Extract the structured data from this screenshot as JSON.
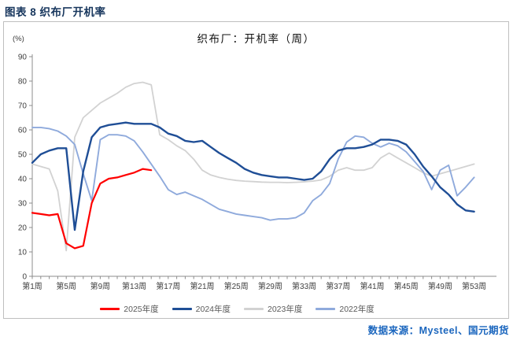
{
  "figure": {
    "title": "图表 8 织布厂开机率"
  },
  "chart": {
    "title": "织布厂：开机率（周）",
    "unit_label": "(%)",
    "y_ticks": [
      0,
      10,
      20,
      30,
      40,
      50,
      60,
      70,
      80,
      90
    ],
    "x_tick_labels": [
      "第1周",
      "第5周",
      "第9周",
      "第13周",
      "第17周",
      "第21周",
      "第25周",
      "第29周",
      "第33周",
      "第37周",
      "第41周",
      "第45周",
      "第49周",
      "第53周"
    ]
  },
  "legend": {
    "items": [
      {
        "label": "2025年度",
        "color": "#FF0000"
      },
      {
        "label": "2024年度",
        "color": "#1F4E96"
      },
      {
        "label": "2023年度",
        "color": "#D2D2D2"
      },
      {
        "label": "2022年度",
        "color": "#8FAADC"
      }
    ]
  },
  "source": {
    "text": "数据来源：Mysteel、国元期货"
  },
  "chart_data": {
    "type": "line",
    "title": "织布厂：开机率（周）",
    "ylabel": "(%)",
    "ylim": [
      0,
      90
    ],
    "x_unit": "week",
    "x_range": [
      1,
      53
    ],
    "x_axis_tick_step": 1,
    "x_label_weeks": [
      1,
      5,
      9,
      13,
      17,
      21,
      25,
      29,
      33,
      37,
      41,
      45,
      49,
      53
    ],
    "grid": false,
    "legend_position": "bottom",
    "series": [
      {
        "name": "2025年度",
        "color": "#FF0000",
        "start_week": 1,
        "values": [
          26,
          25.5,
          25,
          25.5,
          13.5,
          11.5,
          12.5,
          30,
          38,
          40,
          40.5,
          41.5,
          42.5,
          44,
          43.5
        ]
      },
      {
        "name": "2024年度",
        "color": "#1F4E96",
        "start_week": 1,
        "values": [
          46.5,
          50,
          51.5,
          52.5,
          52.5,
          19,
          43,
          57,
          61,
          62,
          62.5,
          63,
          62.5,
          62.5,
          62.5,
          61,
          58.5,
          57.5,
          55.5,
          55,
          55.5,
          53,
          50.5,
          48.5,
          46.5,
          44,
          42.5,
          41.5,
          41,
          40.5,
          40.5,
          40,
          39.5,
          40,
          43,
          48,
          51.5,
          52.5,
          52.5,
          53,
          54,
          56,
          56,
          55.5,
          54,
          50,
          45,
          41,
          36.5,
          33.5,
          29.5,
          27,
          26.5
        ]
      },
      {
        "name": "2023年度",
        "color": "#D2D2D2",
        "start_week": 1,
        "values": [
          46,
          45,
          44,
          35,
          10.5,
          57,
          65,
          68,
          71,
          73,
          75,
          77.5,
          79,
          79.5,
          78.5,
          58,
          56,
          53.5,
          51.5,
          48,
          43.5,
          41.5,
          40.5,
          39.8,
          39.3,
          39,
          38.8,
          38.6,
          38.5,
          38.5,
          38.4,
          38.5,
          38.7,
          39,
          39.5,
          41,
          43.5,
          44.5,
          43.5,
          43.5,
          44.5,
          48.5,
          50.5,
          48.5,
          46.5,
          44.5,
          42.5,
          41,
          42,
          43,
          44,
          45,
          46
        ]
      },
      {
        "name": "2022年度",
        "color": "#8FAADC",
        "start_week": 1,
        "values": [
          61,
          61,
          60.5,
          59.5,
          57.5,
          54,
          42,
          31,
          56,
          58,
          58,
          57.5,
          55.5,
          51,
          46,
          41,
          35.5,
          33.5,
          34.5,
          33,
          31.5,
          29.5,
          27.5,
          26.5,
          25.5,
          25,
          24.5,
          24,
          23,
          23.5,
          23.5,
          24,
          26,
          31,
          33.5,
          38,
          48,
          55,
          57.5,
          57,
          54.5,
          53,
          54.5,
          53.5,
          51,
          47,
          43,
          35.5,
          43.5,
          45.5,
          33,
          36.5,
          40.5
        ]
      }
    ]
  }
}
